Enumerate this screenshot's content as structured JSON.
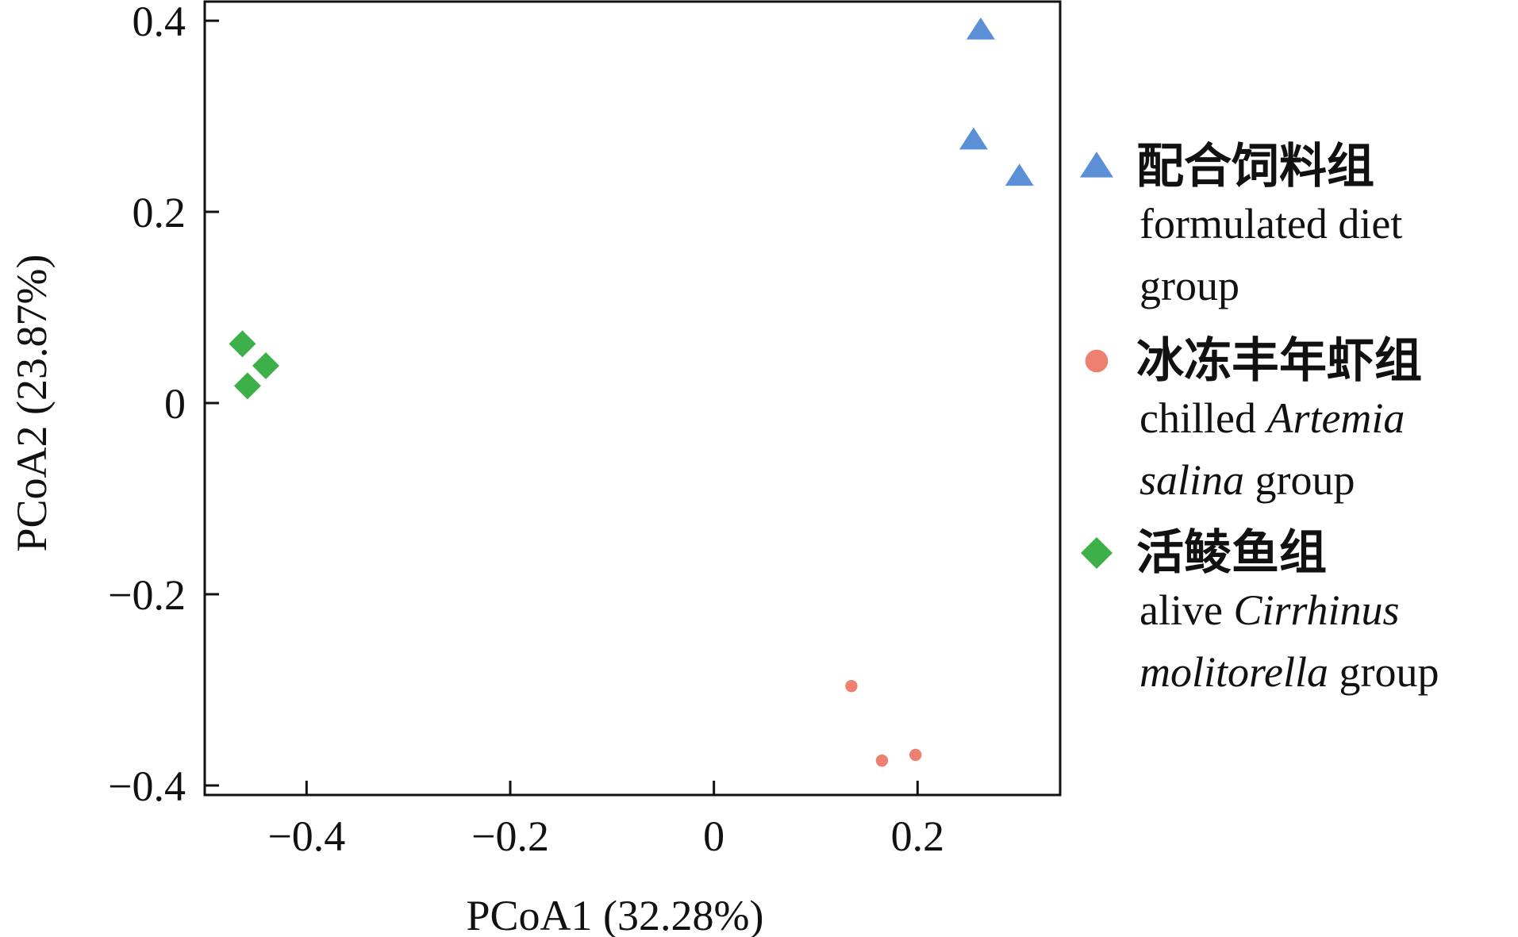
{
  "chart_data": {
    "type": "scatter",
    "xlabel": "PCoA1 (32.28%)",
    "ylabel": "PCoA2 (23.87%)",
    "xlim": [
      -0.5,
      0.34
    ],
    "ylim": [
      -0.41,
      0.42
    ],
    "xticks": [
      -0.4,
      -0.2,
      0,
      0.2
    ],
    "xtick_labels": [
      "−0.4",
      "−0.2",
      "0",
      "0.2"
    ],
    "yticks": [
      -0.4,
      -0.2,
      0,
      0.2,
      0.4
    ],
    "ytick_labels": [
      "−0.4",
      "−0.2",
      "0",
      "0.2",
      "0.4"
    ],
    "grid": false,
    "legend_position": "right",
    "series": [
      {
        "name": "配合饲料组 formulated diet group",
        "legend_cn": "配合饲料组",
        "legend_en": [
          [
            {
              "t": "formulated diet",
              "i": false
            }
          ],
          [
            {
              "t": "group",
              "i": false
            }
          ]
        ],
        "marker": "triangle",
        "color": "#5b8fd6",
        "points": [
          [
            0.262,
            0.39
          ],
          [
            0.255,
            0.275
          ],
          [
            0.3,
            0.237
          ]
        ]
      },
      {
        "name": "冰冻丰年虾组 chilled Artemia salina group",
        "legend_cn": "冰冻丰年虾组",
        "legend_en": [
          [
            {
              "t": "chilled ",
              "i": false
            },
            {
              "t": "Artemia",
              "i": true
            }
          ],
          [
            {
              "t": "salina",
              "i": true
            },
            {
              "t": " group",
              "i": false
            }
          ]
        ],
        "marker": "circle",
        "color": "#ee8072",
        "points": [
          [
            0.135,
            -0.296
          ],
          [
            0.165,
            -0.374
          ],
          [
            0.198,
            -0.368
          ]
        ]
      },
      {
        "name": "活鲮鱼组 alive Cirrhinus molitorella group",
        "legend_cn": "活鲮鱼组",
        "legend_en": [
          [
            {
              "t": "alive ",
              "i": false
            },
            {
              "t": "Cirrhinus",
              "i": true
            }
          ],
          [
            {
              "t": "molitorella",
              "i": true
            },
            {
              "t": " group",
              "i": false
            }
          ]
        ],
        "marker": "diamond",
        "color": "#3db04a",
        "points": [
          [
            -0.463,
            0.062
          ],
          [
            -0.44,
            0.039
          ],
          [
            -0.458,
            0.018
          ]
        ]
      }
    ]
  }
}
